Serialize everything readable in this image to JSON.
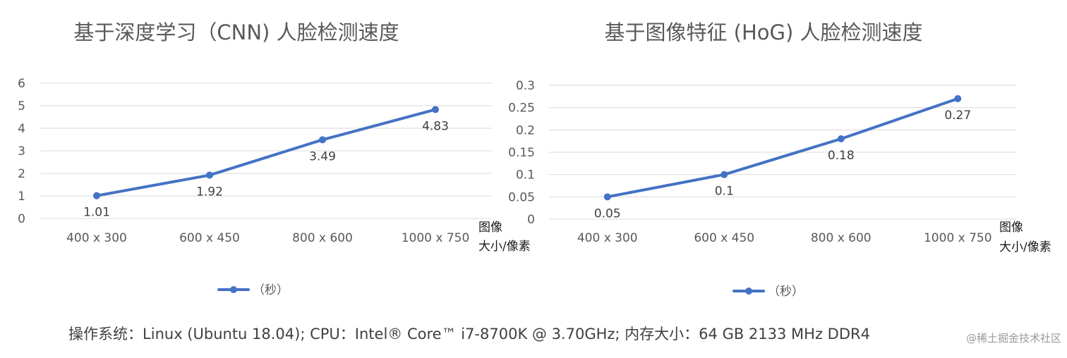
{
  "chart_data": [
    {
      "type": "line",
      "title": "基于深度学习（CNN) 人脸检测速度",
      "categories": [
        "400 x 300",
        "600 x 450",
        "800 x 600",
        "1000 x 750"
      ],
      "series": [
        {
          "name": "（秒）",
          "values": [
            1.01,
            1.92,
            3.49,
            4.83
          ]
        }
      ],
      "data_labels": [
        "1.01",
        "1.92",
        "3.49",
        "4.83"
      ],
      "yticks": [
        "0",
        "1",
        "2",
        "3",
        "4",
        "5",
        "6"
      ],
      "ylim": [
        0,
        6
      ],
      "xlabel": [
        "图像",
        "大小/像素"
      ],
      "ylabel": "",
      "grid": true,
      "legend": "bottom",
      "color": "#4472c4"
    },
    {
      "type": "line",
      "title": "基于图像特征 (HoG) 人脸检测速度",
      "categories": [
        "400 x 300",
        "600 x 450",
        "800 x 600",
        "1000 x 750"
      ],
      "series": [
        {
          "name": "（秒）",
          "values": [
            0.05,
            0.1,
            0.18,
            0.27
          ]
        }
      ],
      "data_labels": [
        "0.05",
        "0.1",
        "0.18",
        "0.27"
      ],
      "yticks": [
        "0",
        "0.05",
        "0.1",
        "0.15",
        "0.2",
        "0.25",
        "0.3"
      ],
      "ylim": [
        0,
        0.3
      ],
      "xlabel": [
        "图像",
        "大小/像素"
      ],
      "ylabel": "",
      "grid": true,
      "legend": "bottom",
      "color": "#4472c4"
    }
  ],
  "footer": "操作系统：Linux (Ubuntu 18.04); CPU：Intel® Core™ i7-8700K @ 3.70GHz; 内存大小：64 GB 2133 MHz DDR4",
  "watermark": "@稀土掘金技术社区"
}
